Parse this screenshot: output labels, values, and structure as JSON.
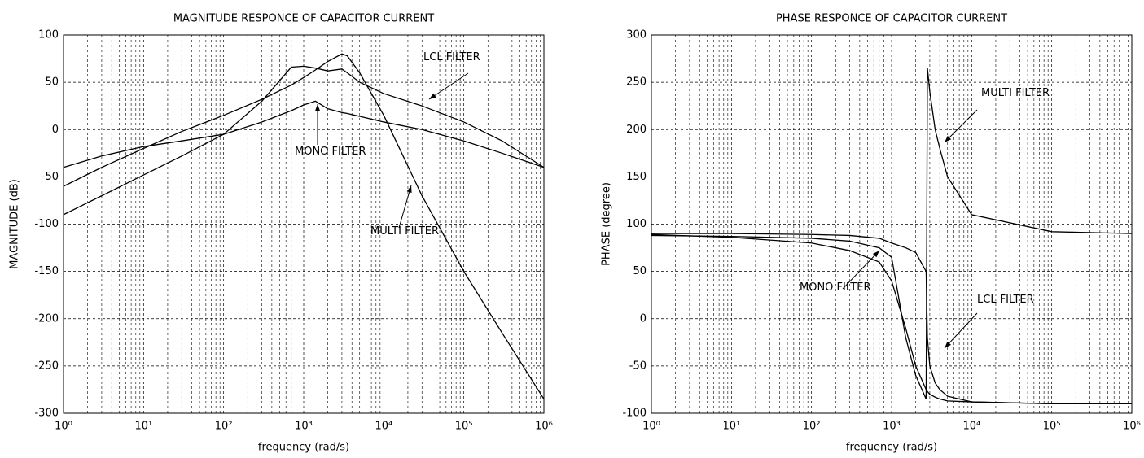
{
  "chart_data": [
    {
      "type": "line",
      "title": "MAGNITUDE RESPONCE OF CAPACITOR CURRENT",
      "xlabel": "frequency (rad/s)",
      "ylabel": "MAGNITUDE (dB)",
      "log_x": true,
      "grid": true,
      "xlim": [
        1,
        1000000
      ],
      "xticks": [
        {
          "value": 1,
          "label": "10⁰"
        },
        {
          "value": 10,
          "label": "10¹"
        },
        {
          "value": 100,
          "label": "10²"
        },
        {
          "value": 1000,
          "label": "10³"
        },
        {
          "value": 10000,
          "label": "10⁴"
        },
        {
          "value": 100000,
          "label": "10⁵"
        },
        {
          "value": 1000000,
          "label": "10⁶"
        }
      ],
      "ylim": [
        -300,
        100
      ],
      "yticks": [
        -300,
        -250,
        -200,
        -150,
        -100,
        -50,
        0,
        50,
        100
      ],
      "x": [
        1,
        3,
        10,
        30,
        100,
        300,
        700,
        1000,
        1400,
        2000,
        3000,
        3500,
        5000,
        10000,
        30000,
        100000,
        300000,
        1000000
      ],
      "series": [
        {
          "name": "LCL FILTER",
          "color": "#000000",
          "values": [
            -90,
            -70,
            -48,
            -28,
            -5,
            30,
            66,
            67,
            65,
            62,
            64,
            60,
            50,
            38,
            25,
            8,
            -12,
            -40
          ]
        },
        {
          "name": "MONO FILTER",
          "color": "#000000",
          "values": [
            -40,
            -28,
            -18,
            -12,
            -5,
            8,
            20,
            26,
            30,
            22,
            18,
            17,
            14,
            8,
            0,
            -12,
            -25,
            -40
          ]
        },
        {
          "name": "MULTI FILTER",
          "color": "#000000",
          "values": [
            -60,
            -40,
            -20,
            -2,
            15,
            32,
            47,
            55,
            63,
            72,
            80,
            78,
            60,
            15,
            -70,
            -150,
            -215,
            -285
          ]
        }
      ]
    },
    {
      "type": "line",
      "title": "PHASE RESPONCE OF CAPACITOR CURRENT",
      "xlabel": "frequency (rad/s)",
      "ylabel": "PHASE (degree)",
      "log_x": true,
      "grid": true,
      "xlim": [
        1,
        1000000
      ],
      "xticks": [
        {
          "value": 1,
          "label": "10⁰"
        },
        {
          "value": 10,
          "label": "10¹"
        },
        {
          "value": 100,
          "label": "10²"
        },
        {
          "value": 1000,
          "label": "10³"
        },
        {
          "value": 10000,
          "label": "10⁴"
        },
        {
          "value": 100000,
          "label": "10⁵"
        },
        {
          "value": 1000000,
          "label": "10⁶"
        }
      ],
      "ylim": [
        -100,
        300
      ],
      "yticks": [
        -100,
        -50,
        0,
        50,
        100,
        150,
        200,
        250,
        300
      ],
      "x": [
        1,
        10,
        100,
        300,
        700,
        1000,
        1500,
        2000,
        2700,
        2800,
        3000,
        3500,
        4000,
        5000,
        10000,
        100000,
        1000000
      ],
      "series": [
        {
          "name": "MULTI FILTER",
          "color": "#000000",
          "values": [
            88,
            87,
            85,
            82,
            75,
            65,
            -20,
            -60,
            -85,
            265,
            240,
            200,
            180,
            150,
            110,
            92,
            90
          ]
        },
        {
          "name": "MONO FILTER",
          "color": "#000000",
          "values": [
            89,
            86,
            80,
            72,
            60,
            40,
            -10,
            -50,
            -75,
            -77,
            -80,
            -83,
            -85,
            -87,
            -88,
            -90,
            -90
          ]
        },
        {
          "name": "LCL FILTER",
          "color": "#000000",
          "values": [
            90,
            90,
            89,
            88,
            85,
            80,
            75,
            70,
            50,
            -20,
            -50,
            -68,
            -75,
            -82,
            -88,
            -90,
            -90
          ]
        }
      ]
    }
  ]
}
